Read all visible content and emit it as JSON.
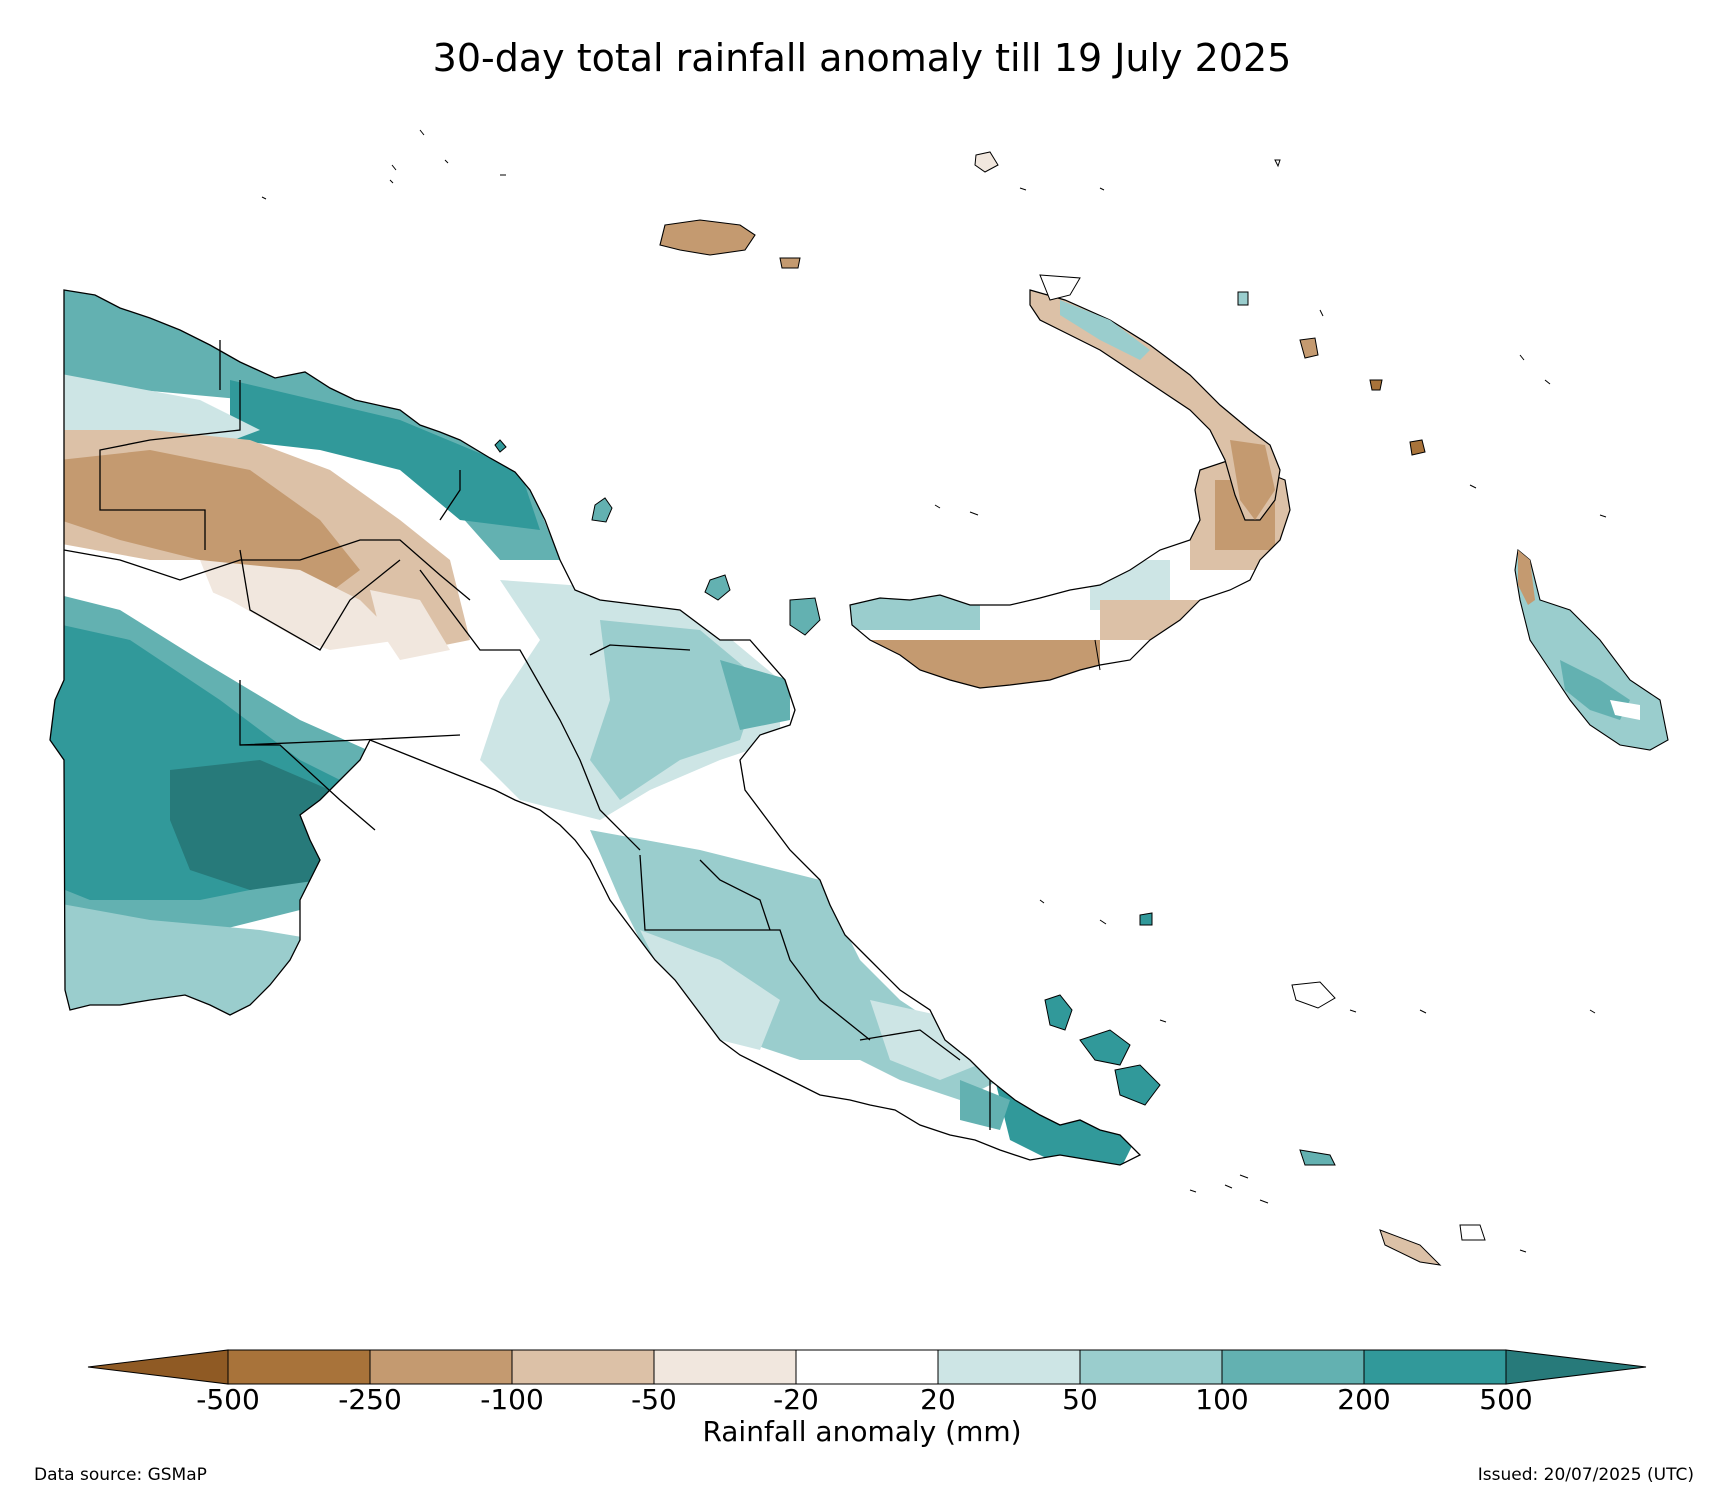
{
  "title": "30-day total rainfall anomaly till 19 July 2025",
  "colorbar": {
    "label": "Rainfall anomaly (mm)",
    "ticks": [
      "-500",
      "-250",
      "-100",
      "-50",
      "-20",
      "20",
      "50",
      "100",
      "200",
      "500"
    ],
    "colors": {
      "lt_-500": "#8f5a24",
      "-500_-250": "#a8733a",
      "-250_-100": "#c49a70",
      "-100_-50": "#dcc1a7",
      "-50_-20": "#f1e7de",
      "-20_20": "#ffffff",
      "20_50": "#cde5e5",
      "50_100": "#9acdcd",
      "100_200": "#63b1b1",
      "200_500": "#31999a",
      "gt_500": "#277a7a"
    }
  },
  "footer": {
    "source": "Data source: GSMaP",
    "issued": "Issued: 20/07/2025 (UTC)"
  }
}
